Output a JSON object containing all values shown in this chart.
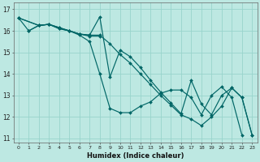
{
  "xlabel": "Humidex (Indice chaleur)",
  "xlim": [
    -0.5,
    23.5
  ],
  "ylim": [
    10.8,
    17.3
  ],
  "yticks": [
    11,
    12,
    13,
    14,
    15,
    16,
    17
  ],
  "xticks": [
    0,
    1,
    2,
    3,
    4,
    5,
    6,
    7,
    8,
    9,
    10,
    11,
    12,
    13,
    14,
    15,
    16,
    17,
    18,
    19,
    20,
    21,
    22,
    23
  ],
  "bg_color": "#bde8e2",
  "grid_color": "#99d4cc",
  "line_color": "#006666",
  "lines": [
    {
      "x": [
        0,
        1,
        2,
        3,
        4,
        5,
        6,
        7,
        8,
        9,
        10,
        11,
        12,
        13,
        14,
        15,
        16,
        17,
        18,
        19,
        20,
        21,
        22,
        23
      ],
      "y": [
        16.6,
        16.0,
        16.25,
        16.3,
        16.1,
        16.0,
        15.8,
        15.5,
        14.0,
        12.4,
        12.2,
        12.2,
        12.5,
        12.7,
        13.1,
        13.25,
        13.25,
        12.9,
        12.1,
        13.0,
        13.4,
        12.9,
        11.15,
        null
      ]
    },
    {
      "x": [
        0,
        2,
        3,
        4,
        5,
        6,
        7,
        8,
        9,
        10,
        11,
        12,
        13,
        14,
        15,
        16,
        17,
        18,
        19,
        20,
        21,
        22,
        23
      ],
      "y": [
        16.6,
        16.25,
        16.3,
        16.15,
        16.0,
        15.85,
        15.8,
        15.8,
        15.4,
        14.9,
        14.5,
        14.0,
        13.5,
        13.0,
        12.55,
        12.1,
        11.9,
        11.6,
        12.0,
        12.5,
        13.35,
        12.9,
        11.15
      ]
    },
    {
      "x": [
        0,
        2,
        3,
        4,
        5,
        6,
        7,
        8,
        9,
        10,
        11,
        12,
        13,
        14,
        15,
        16,
        17,
        18,
        19,
        20,
        21,
        22,
        23
      ],
      "y": [
        16.6,
        16.25,
        16.3,
        16.15,
        16.0,
        15.85,
        15.8,
        16.65,
        13.85,
        15.1,
        14.8,
        14.3,
        13.7,
        13.15,
        12.65,
        12.15,
        13.7,
        12.6,
        12.1,
        13.0,
        13.35,
        12.9,
        11.15
      ]
    },
    {
      "x": [
        1,
        2,
        3,
        4,
        5,
        6,
        7,
        8
      ],
      "y": [
        16.0,
        16.25,
        16.3,
        16.1,
        16.0,
        15.85,
        15.75,
        15.75
      ]
    }
  ]
}
